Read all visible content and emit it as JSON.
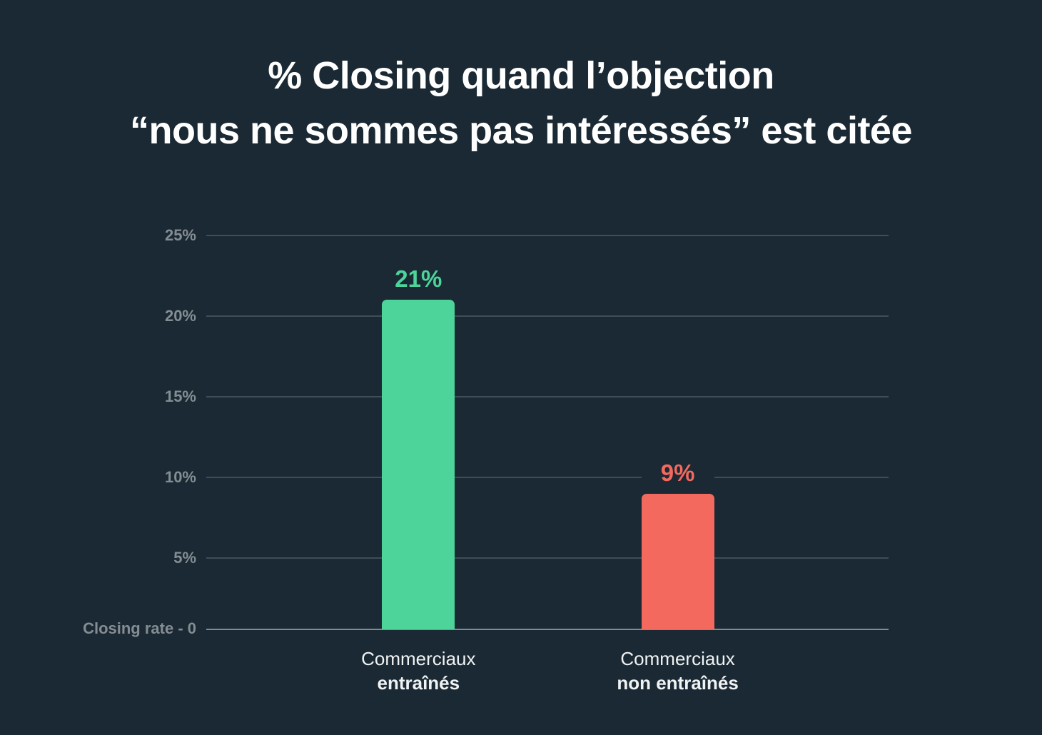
{
  "title": {
    "line1": "% Closing quand l’objection",
    "line2": "“nous ne sommes pas intéressés” est citée"
  },
  "chart_data": {
    "type": "bar",
    "title": "% Closing quand l’objection “nous ne sommes pas intéressés” est citée",
    "categories": [
      "Commerciaux entraînés",
      "Commerciaux non entraînés"
    ],
    "values": [
      21,
      9
    ],
    "value_labels": [
      "21%",
      "9%"
    ],
    "bar_colors": [
      "#4cd49a",
      "#f4695e"
    ],
    "xlabel": "",
    "ylabel": "Closing rate",
    "ylim": [
      0,
      25
    ],
    "yticks": [
      5,
      10,
      15,
      20,
      25
    ],
    "ytick_labels": [
      "5%",
      "10%",
      "15%",
      "20%",
      "25%"
    ],
    "zero_label": "Closing rate - 0",
    "grid": true,
    "legend": false,
    "bars": [
      {
        "value": 21,
        "value_label": "21%",
        "color": "#4cd49a",
        "category_line1": "Commerciaux",
        "category_line2": "entraînés"
      },
      {
        "value": 9,
        "value_label": "9%",
        "color": "#f4695e",
        "category_line1": "Commerciaux",
        "category_line2": "non entraînés"
      }
    ]
  },
  "colors": {
    "background": "#1a2933",
    "title_text": "#ffffff",
    "gridline": "#3e4d56",
    "baseline": "#828b92",
    "axis_label_text": "#848d93",
    "category_text": "#f0f3f4",
    "bar_green": "#4cd49a",
    "bar_red": "#f4695e"
  }
}
